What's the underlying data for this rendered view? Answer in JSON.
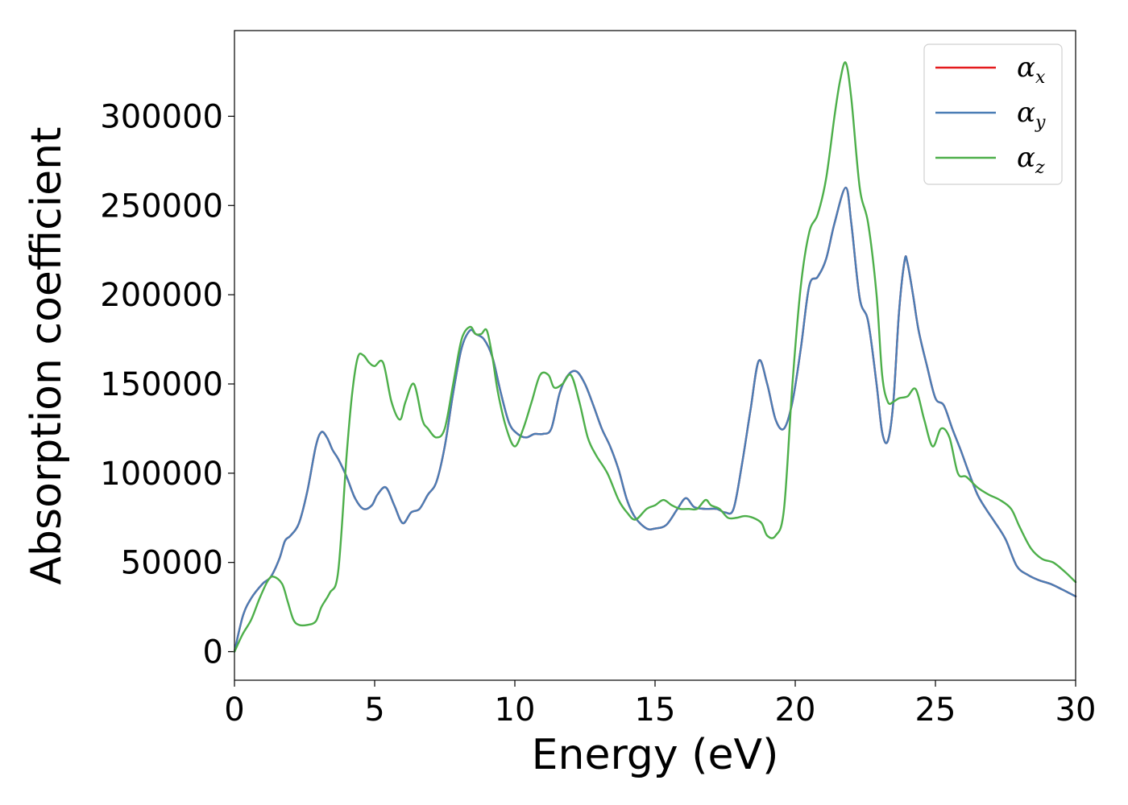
{
  "chart_data": {
    "type": "line",
    "title": "",
    "xlabel": "Energy (eV)",
    "ylabel": "Absorption coefficient",
    "xlim": [
      0,
      30
    ],
    "ylim": [
      -16000,
      348000
    ],
    "xticks": [
      0,
      5,
      10,
      15,
      20,
      25,
      30
    ],
    "yticks": [
      0,
      50000,
      100000,
      150000,
      200000,
      250000,
      300000
    ],
    "xtick_labels": [
      "0",
      "5",
      "10",
      "15",
      "20",
      "25",
      "30"
    ],
    "ytick_labels": [
      "0",
      "50000",
      "100000",
      "150000",
      "200000",
      "250000",
      "300000"
    ],
    "grid": false,
    "legend_position": "top-right",
    "colors": {
      "x": "#e41a1c",
      "y": "#4a7db5",
      "z": "#4daf4a"
    },
    "series": [
      {
        "name": "αx",
        "base": "α",
        "sub": "x",
        "key": "x",
        "x": [
          0,
          0.3,
          0.6,
          1.0,
          1.3,
          1.6,
          1.8,
          2.0,
          2.3,
          2.6,
          2.9,
          3.1,
          3.3,
          3.5,
          3.7,
          4.0,
          4.3,
          4.6,
          4.9,
          5.1,
          5.4,
          5.7,
          6.0,
          6.3,
          6.6,
          6.9,
          7.2,
          7.5,
          7.8,
          8.1,
          8.4,
          8.6,
          8.9,
          9.2,
          9.5,
          9.8,
          10.1,
          10.4,
          10.7,
          11.0,
          11.3,
          11.6,
          11.9,
          12.2,
          12.5,
          12.8,
          13.1,
          13.4,
          13.7,
          14.0,
          14.3,
          14.7,
          15.0,
          15.4,
          15.8,
          16.1,
          16.4,
          16.8,
          17.2,
          17.5,
          17.8,
          18.1,
          18.4,
          18.7,
          19.0,
          19.3,
          19.6,
          19.9,
          20.2,
          20.5,
          20.8,
          21.1,
          21.4,
          21.8,
          22.0,
          22.3,
          22.6,
          22.9,
          23.1,
          23.3,
          23.5,
          23.7,
          23.9,
          24.0,
          24.2,
          24.4,
          24.7,
          25.0,
          25.3,
          25.6,
          25.9,
          26.2,
          26.5,
          26.8,
          27.1,
          27.5,
          27.9,
          28.3,
          28.7,
          29.1,
          29.5,
          30.0
        ],
        "values": [
          0,
          20000,
          30000,
          38000,
          42000,
          52000,
          62000,
          65000,
          72000,
          90000,
          115000,
          123000,
          120000,
          113000,
          108000,
          98000,
          86000,
          80000,
          82000,
          88000,
          92000,
          82000,
          72000,
          78000,
          80000,
          88000,
          95000,
          115000,
          145000,
          170000,
          180000,
          178000,
          175000,
          165000,
          145000,
          128000,
          122000,
          120000,
          122000,
          122000,
          125000,
          145000,
          155000,
          157000,
          150000,
          138000,
          125000,
          115000,
          102000,
          85000,
          75000,
          69000,
          69000,
          71000,
          80000,
          86000,
          81000,
          80000,
          80000,
          78000,
          80000,
          105000,
          135000,
          163000,
          150000,
          130000,
          125000,
          140000,
          170000,
          205000,
          210000,
          220000,
          240000,
          260000,
          240000,
          198000,
          185000,
          150000,
          123000,
          118000,
          140000,
          190000,
          219000,
          218000,
          200000,
          180000,
          160000,
          142000,
          138000,
          125000,
          113000,
          100000,
          88000,
          80000,
          73000,
          63000,
          48000,
          43000,
          40000,
          38000,
          35000,
          31000
        ]
      },
      {
        "name": "αy",
        "base": "α",
        "sub": "y",
        "key": "y",
        "x": [
          0,
          0.3,
          0.6,
          1.0,
          1.3,
          1.6,
          1.8,
          2.0,
          2.3,
          2.6,
          2.9,
          3.1,
          3.3,
          3.5,
          3.7,
          4.0,
          4.3,
          4.6,
          4.9,
          5.1,
          5.4,
          5.7,
          6.0,
          6.3,
          6.6,
          6.9,
          7.2,
          7.5,
          7.8,
          8.1,
          8.4,
          8.6,
          8.9,
          9.2,
          9.5,
          9.8,
          10.1,
          10.4,
          10.7,
          11.0,
          11.3,
          11.6,
          11.9,
          12.2,
          12.5,
          12.8,
          13.1,
          13.4,
          13.7,
          14.0,
          14.3,
          14.7,
          15.0,
          15.4,
          15.8,
          16.1,
          16.4,
          16.8,
          17.2,
          17.5,
          17.8,
          18.1,
          18.4,
          18.7,
          19.0,
          19.3,
          19.6,
          19.9,
          20.2,
          20.5,
          20.8,
          21.1,
          21.4,
          21.8,
          22.0,
          22.3,
          22.6,
          22.9,
          23.1,
          23.3,
          23.5,
          23.7,
          23.9,
          24.0,
          24.2,
          24.4,
          24.7,
          25.0,
          25.3,
          25.6,
          25.9,
          26.2,
          26.5,
          26.8,
          27.1,
          27.5,
          27.9,
          28.3,
          28.7,
          29.1,
          29.5,
          30.0
        ],
        "values": [
          0,
          20000,
          30000,
          38000,
          42000,
          52000,
          62000,
          65000,
          72000,
          90000,
          115000,
          123000,
          120000,
          113000,
          108000,
          98000,
          86000,
          80000,
          82000,
          88000,
          92000,
          82000,
          72000,
          78000,
          80000,
          88000,
          95000,
          115000,
          145000,
          170000,
          180000,
          178000,
          175000,
          165000,
          145000,
          128000,
          122000,
          120000,
          122000,
          122000,
          125000,
          145000,
          155000,
          157000,
          150000,
          138000,
          125000,
          115000,
          102000,
          85000,
          75000,
          69000,
          69000,
          71000,
          80000,
          86000,
          81000,
          80000,
          80000,
          78000,
          80000,
          105000,
          135000,
          163000,
          150000,
          130000,
          125000,
          140000,
          170000,
          205000,
          210000,
          220000,
          240000,
          260000,
          240000,
          198000,
          185000,
          150000,
          123000,
          118000,
          140000,
          190000,
          219000,
          218000,
          200000,
          180000,
          160000,
          142000,
          138000,
          125000,
          113000,
          100000,
          88000,
          80000,
          73000,
          63000,
          48000,
          43000,
          40000,
          38000,
          35000,
          31000
        ]
      },
      {
        "name": "αz",
        "base": "α",
        "sub": "z",
        "key": "z",
        "x": [
          0,
          0.3,
          0.6,
          0.9,
          1.2,
          1.4,
          1.7,
          1.9,
          2.1,
          2.3,
          2.6,
          2.9,
          3.1,
          3.4,
          3.7,
          4.0,
          4.2,
          4.4,
          4.6,
          4.8,
          5.0,
          5.3,
          5.6,
          5.9,
          6.1,
          6.4,
          6.7,
          6.9,
          7.2,
          7.5,
          7.8,
          8.1,
          8.4,
          8.6,
          8.8,
          9.0,
          9.2,
          9.4,
          9.7,
          10.0,
          10.3,
          10.6,
          10.9,
          11.2,
          11.4,
          11.7,
          12.0,
          12.3,
          12.6,
          12.9,
          13.3,
          13.7,
          14.0,
          14.3,
          14.7,
          15.0,
          15.3,
          15.6,
          15.9,
          16.2,
          16.5,
          16.8,
          17.0,
          17.3,
          17.6,
          17.9,
          18.2,
          18.5,
          18.8,
          19.0,
          19.3,
          19.6,
          19.9,
          20.2,
          20.5,
          20.8,
          21.1,
          21.4,
          21.6,
          21.8,
          22.0,
          22.3,
          22.6,
          22.9,
          23.1,
          23.3,
          23.5,
          23.7,
          24.0,
          24.3,
          24.6,
          24.9,
          25.2,
          25.5,
          25.8,
          26.1,
          26.5,
          26.9,
          27.3,
          27.7,
          28.0,
          28.4,
          28.8,
          29.2,
          29.6,
          30.0
        ],
        "values": [
          0,
          10000,
          18000,
          30000,
          40000,
          42000,
          38000,
          28000,
          18000,
          15000,
          15000,
          17000,
          25000,
          33000,
          45000,
          110000,
          145000,
          165000,
          166000,
          162000,
          160000,
          162000,
          140000,
          130000,
          140000,
          150000,
          130000,
          125000,
          120000,
          125000,
          150000,
          175000,
          182000,
          178000,
          178000,
          180000,
          165000,
          145000,
          125000,
          115000,
          125000,
          140000,
          155000,
          155000,
          148000,
          150000,
          155000,
          140000,
          120000,
          110000,
          100000,
          85000,
          78000,
          74000,
          80000,
          82000,
          85000,
          82000,
          80000,
          80000,
          80000,
          85000,
          82000,
          80000,
          75000,
          75000,
          76000,
          75000,
          72000,
          65000,
          65000,
          80000,
          150000,
          205000,
          235000,
          245000,
          265000,
          300000,
          320000,
          330000,
          310000,
          260000,
          240000,
          200000,
          155000,
          140000,
          140000,
          142000,
          143000,
          147000,
          130000,
          115000,
          125000,
          120000,
          100000,
          98000,
          92000,
          88000,
          85000,
          80000,
          70000,
          58000,
          52000,
          50000,
          45000,
          39000
        ]
      }
    ]
  }
}
